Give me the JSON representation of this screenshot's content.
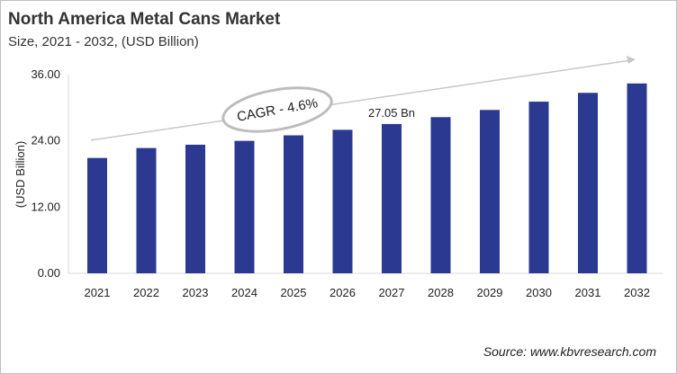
{
  "chart_data": {
    "type": "bar",
    "title": "North America Metal Cans Market",
    "subtitle": "Size, 2021 - 2032, (USD Billion)",
    "xlabel": "",
    "ylabel": "(USD Billion)",
    "ylim": [
      0,
      36
    ],
    "yticks": [
      "0.00",
      "12.00",
      "24.00",
      "36.00"
    ],
    "yticks_values": [
      0,
      12,
      24,
      36
    ],
    "categories": [
      "2021",
      "2022",
      "2023",
      "2024",
      "2025",
      "2026",
      "2027",
      "2028",
      "2029",
      "2030",
      "2031",
      "2032"
    ],
    "values": [
      20.9,
      22.7,
      23.3,
      24.0,
      25.0,
      26.0,
      27.05,
      28.3,
      29.6,
      31.1,
      32.7,
      34.4
    ],
    "bar_color": "#2b3990",
    "annotations": {
      "cagr": "CAGR - 4.6%",
      "value_label": "27.05 Bn",
      "value_label_index": 6
    },
    "source": "Source: www.kbvresearch.com",
    "grid": false
  }
}
